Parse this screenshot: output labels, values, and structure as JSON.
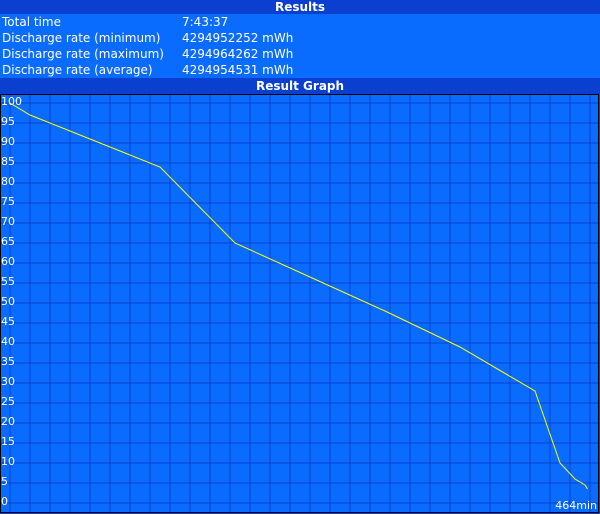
{
  "results": {
    "title": "Results",
    "rows": [
      {
        "label": "Total time",
        "value": "7:43:37"
      },
      {
        "label": "Discharge rate (minimum)",
        "value": "4294952252 mWh"
      },
      {
        "label": "Discharge rate (maximum)",
        "value": "4294964262 mWh"
      },
      {
        "label": "Discharge rate (average)",
        "value": "4294954531 mWh"
      }
    ]
  },
  "graph": {
    "title": "Result Graph"
  },
  "colors": {
    "background": "#0a6cff",
    "grid": "#0a3fcf",
    "line": "#ffff00"
  },
  "chart_data": {
    "type": "line",
    "xlabel": "",
    "ylabel": "",
    "x_end_label": "464min",
    "xlim": [
      0,
      464
    ],
    "ylim": [
      0,
      100
    ],
    "yticks": [
      "100",
      "95",
      "90",
      "85",
      "80",
      "75",
      "70",
      "65",
      "60",
      "55",
      "50",
      "45",
      "40",
      "35",
      "30",
      "25",
      "20",
      "15",
      "10",
      "5",
      "0"
    ],
    "grid": true,
    "series": [
      {
        "x": [
          0,
          16,
          64,
          120,
          180,
          240,
          300,
          360,
          420,
          440,
          452,
          460,
          462
        ],
        "values": [
          100,
          97,
          91,
          84,
          65,
          56.5,
          48,
          39,
          28,
          10,
          6,
          4.5,
          3.5
        ]
      }
    ]
  }
}
